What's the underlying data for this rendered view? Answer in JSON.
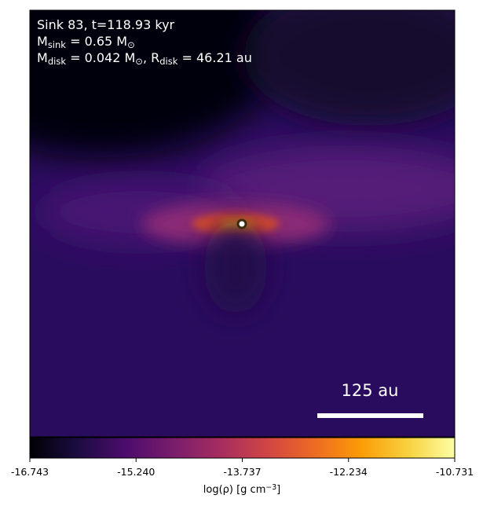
{
  "chart_data": {
    "type": "image",
    "annotations": [
      [
        {
          "text": "Sink 83, t=118.93 kyr"
        }
      ],
      [
        {
          "text": "M"
        },
        {
          "sub": "sink"
        },
        {
          "text": " = 0.65 M"
        },
        {
          "sub": "⊙"
        }
      ],
      [
        {
          "text": "M"
        },
        {
          "sub": "disk"
        },
        {
          "text": " = 0.042 M"
        },
        {
          "sub": "⊙"
        },
        {
          "text": ", R"
        },
        {
          "sub": "disk"
        },
        {
          "text": " = 46.21 au"
        }
      ]
    ],
    "scale_bar_label": "125 au",
    "colormap": "inferno",
    "colorbar": {
      "label": [
        {
          "text": "log(ρ) [g cm"
        },
        {
          "sup": "−3"
        },
        {
          "text": "]"
        }
      ],
      "lim": [
        -16.743,
        -10.731
      ],
      "ticks": [
        -16.743,
        {
          "value": -15.24,
          "label": "-15.240"
        },
        -13.737,
        -12.234,
        -10.731
      ]
    }
  }
}
